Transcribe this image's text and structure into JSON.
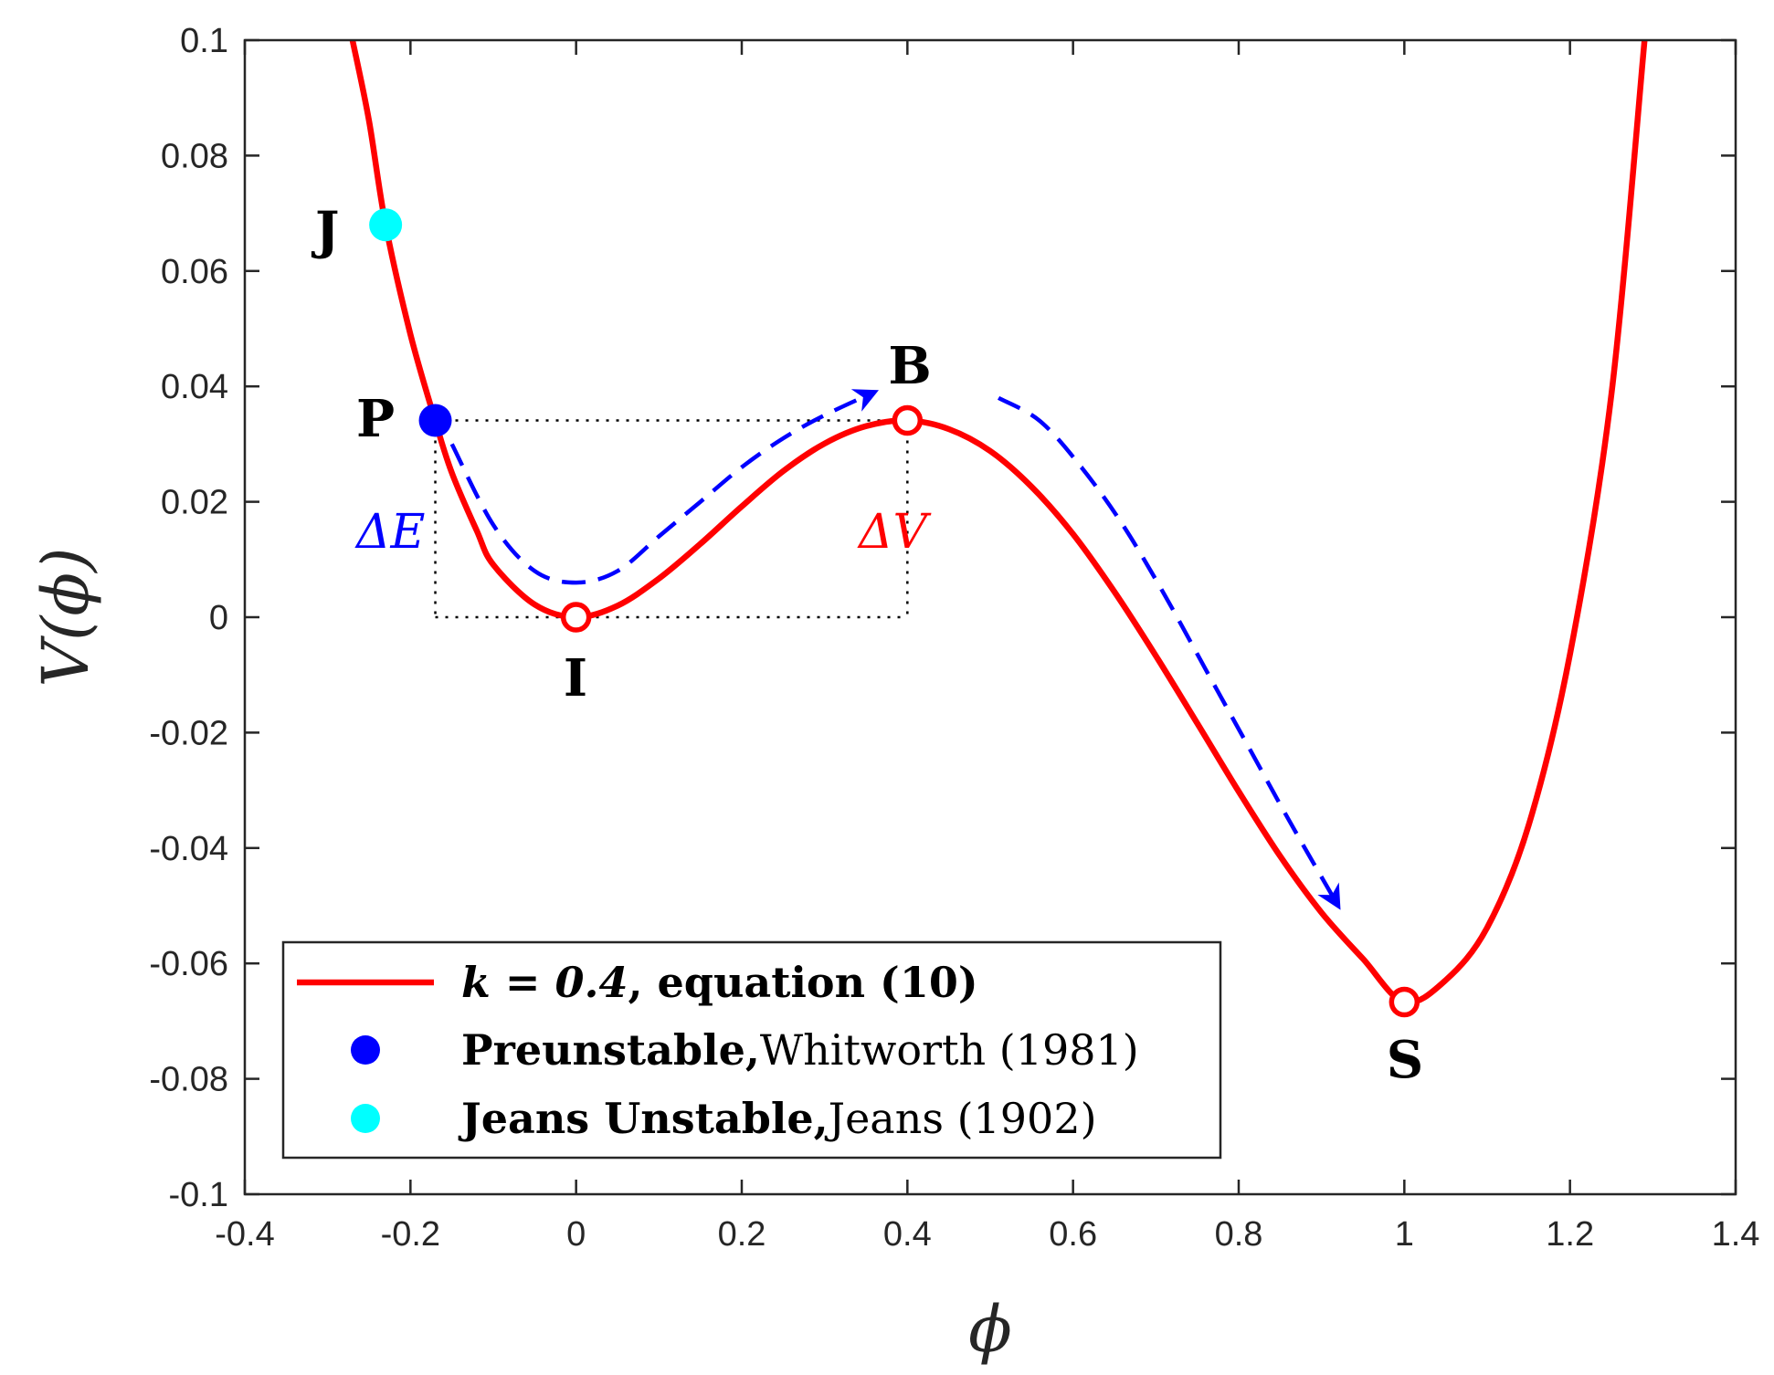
{
  "chart_data": {
    "type": "line",
    "xlabel": "ϕ",
    "ylabel": "V(ϕ)",
    "xlim": [
      -0.4,
      1.4
    ],
    "ylim": [
      -0.1,
      0.1
    ],
    "x_ticks": [
      -0.4,
      -0.2,
      0,
      0.2,
      0.4,
      0.6,
      0.8,
      1,
      1.2,
      1.4
    ],
    "x_tick_labels": [
      "-0.4",
      "-0.2",
      "0",
      "0.2",
      "0.4",
      "0.6",
      "0.8",
      "1",
      "1.2",
      "1.4"
    ],
    "y_ticks": [
      -0.1,
      -0.08,
      -0.06,
      -0.04,
      -0.02,
      0,
      0.02,
      0.04,
      0.06,
      0.08,
      0.1
    ],
    "y_tick_labels": [
      "-0.1",
      "-0.08",
      "-0.06",
      "-0.04",
      "-0.02",
      "0",
      "0.02",
      "0.04",
      "0.06",
      "0.08",
      "0.1"
    ],
    "grid": false,
    "legend_position": "bottom-left",
    "series": [
      {
        "name": "k = 0.4, equation (10)",
        "name_math": "k = 0.4",
        "name_text": ", equation (10)",
        "color": "#ff0000",
        "x": [
          -0.27,
          -0.25,
          -0.23,
          -0.2,
          -0.17,
          -0.15,
          -0.12,
          -0.1,
          -0.05,
          0,
          0.05,
          0.1,
          0.15,
          0.2,
          0.25,
          0.3,
          0.35,
          0.4,
          0.45,
          0.5,
          0.55,
          0.6,
          0.65,
          0.7,
          0.75,
          0.8,
          0.85,
          0.9,
          0.95,
          1.0,
          1.05,
          1.1,
          1.15,
          1.2,
          1.25,
          1.29
        ],
        "y": [
          0.1,
          0.086,
          0.068,
          0.049,
          0.034,
          0.025,
          0.015,
          0.0091,
          0.0022,
          0,
          0.002,
          0.0067,
          0.0127,
          0.0192,
          0.0253,
          0.0301,
          0.0331,
          0.0341,
          0.0326,
          0.0288,
          0.0226,
          0.0144,
          0.0044,
          -0.0067,
          -0.0184,
          -0.0302,
          -0.0414,
          -0.0512,
          -0.0592,
          -0.0667,
          -0.0629,
          -0.0538,
          -0.0361,
          -0.0064,
          0.0386,
          0.1
        ]
      }
    ],
    "points": [
      {
        "label": "I",
        "x": 0,
        "y": 0,
        "style": "open",
        "color": "#ff0000"
      },
      {
        "label": "B",
        "x": 0.4,
        "y": 0.0341,
        "style": "open",
        "color": "#ff0000"
      },
      {
        "label": "S",
        "x": 1.0,
        "y": -0.0667,
        "style": "open",
        "color": "#ff0000"
      },
      {
        "label": "P",
        "x": -0.17,
        "y": 0.0341,
        "style": "filled",
        "color": "#0000ff"
      },
      {
        "label": "J",
        "x": -0.23,
        "y": 0.068,
        "style": "filled",
        "color": "#00ffff"
      }
    ],
    "annotations": {
      "delta_e": "ΔE",
      "delta_v": "ΔV",
      "delta_e_color": "#0000ff",
      "delta_v_color": "#ff0000"
    },
    "legend": [
      {
        "marker": "line",
        "color": "#ff0000",
        "bold": "k = 0.4",
        "text": ", equation (10)"
      },
      {
        "marker": "dot",
        "color": "#0000ff",
        "bold": "Preunstable,",
        "text": "Whitworth (1981)"
      },
      {
        "marker": "dot",
        "color": "#00ffff",
        "bold": "Jeans Unstable,",
        "text": "Jeans (1902)"
      }
    ]
  }
}
